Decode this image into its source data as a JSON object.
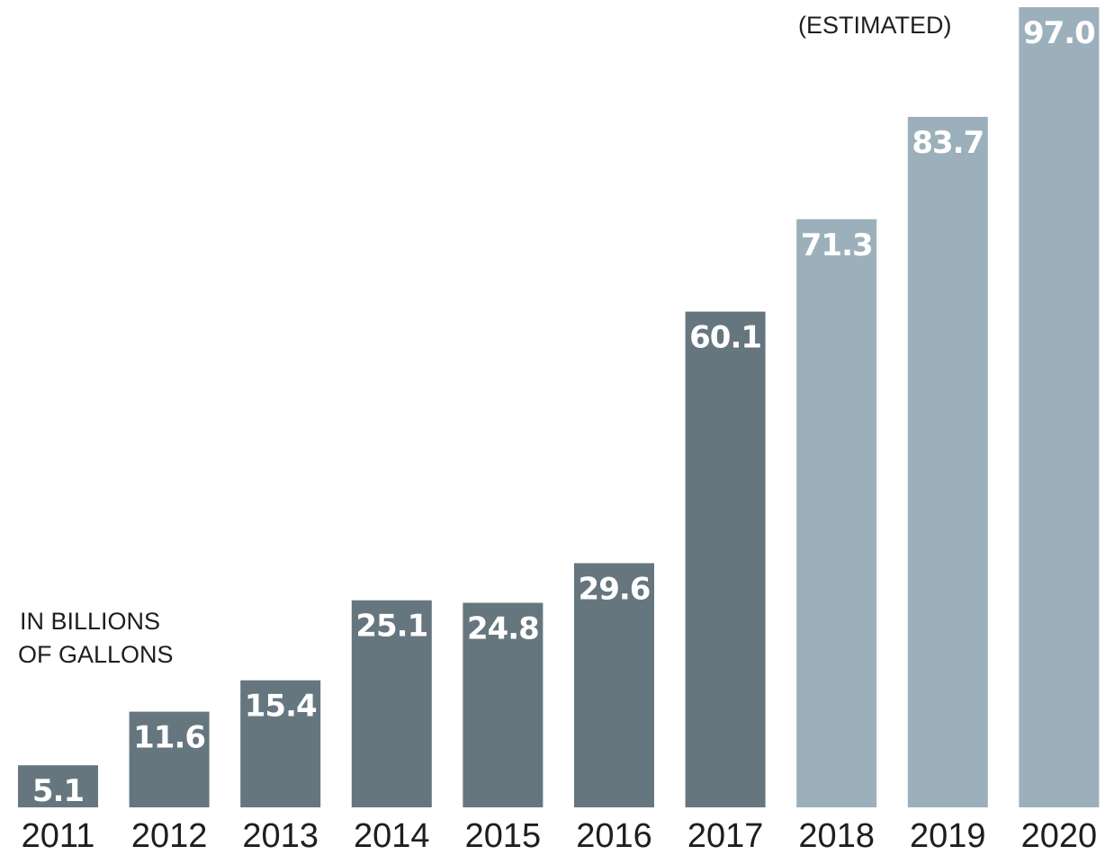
{
  "chart_data": {
    "type": "bar",
    "categories": [
      "2011",
      "2012",
      "2013",
      "2014",
      "2015",
      "2016",
      "2017",
      "2018",
      "2019",
      "2020"
    ],
    "values": [
      5.1,
      11.6,
      15.4,
      25.1,
      24.8,
      29.6,
      60.1,
      71.3,
      83.7,
      97.0
    ],
    "value_labels": [
      "5.1",
      "11.6",
      "15.4",
      "25.1",
      "24.8",
      "29.6",
      "60.1",
      "71.3",
      "83.7",
      "97.0"
    ],
    "estimated": [
      false,
      false,
      false,
      false,
      false,
      false,
      false,
      true,
      true,
      true
    ],
    "unit_note": [
      "IN BILLIONS",
      "OF GALLONS"
    ],
    "estimated_note": "(ESTIMATED)",
    "ylim": [
      0,
      97.0
    ],
    "grid": false,
    "legend": "none"
  },
  "colors": {
    "actual": "#66767f",
    "estimated": "#9cb0bb",
    "value_text": "#ffffff",
    "axis_text": "#1e1e1e"
  }
}
